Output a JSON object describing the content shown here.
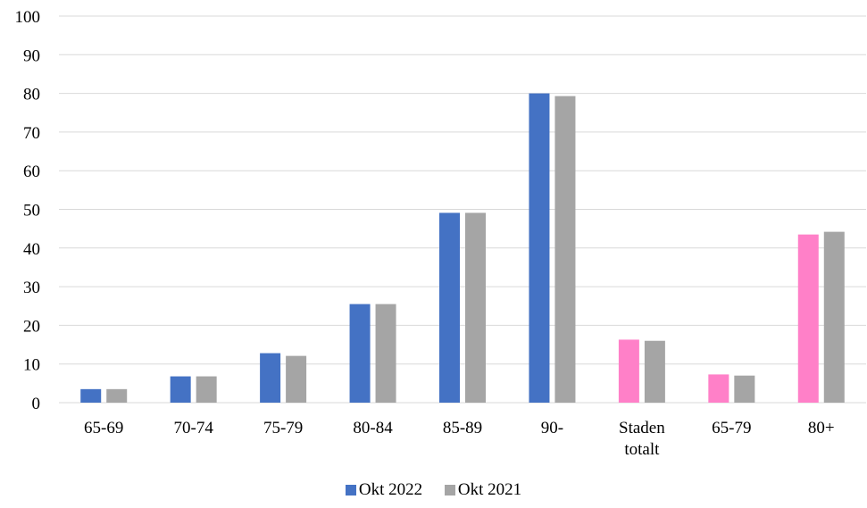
{
  "chart_data": {
    "type": "bar",
    "categories": [
      "65-69",
      "70-74",
      "75-79",
      "80-84",
      "85-89",
      "90-",
      "Staden totalt",
      "65-79",
      "80+"
    ],
    "series": [
      {
        "name": "Okt 2022",
        "values": [
          3.5,
          6.8,
          12.8,
          25.5,
          49.1,
          80.0,
          16.3,
          7.3,
          43.5
        ]
      },
      {
        "name": "Okt 2021",
        "values": [
          3.5,
          6.8,
          12.1,
          25.5,
          49.1,
          79.3,
          16.0,
          7.0,
          44.2
        ]
      }
    ],
    "series0_colors": [
      "#4472C4",
      "#4472C4",
      "#4472C4",
      "#4472C4",
      "#4472C4",
      "#4472C4",
      "#FF80C8",
      "#FF80C8",
      "#FF80C8"
    ],
    "series1_color": "#A5A5A5",
    "legend_colors": [
      "#4472C4",
      "#A5A5A5"
    ],
    "ylim": [
      0,
      100
    ],
    "yticks": [
      0,
      10,
      20,
      30,
      40,
      50,
      60,
      70,
      80,
      90,
      100
    ],
    "grid": true,
    "legend_position": "bottom"
  }
}
